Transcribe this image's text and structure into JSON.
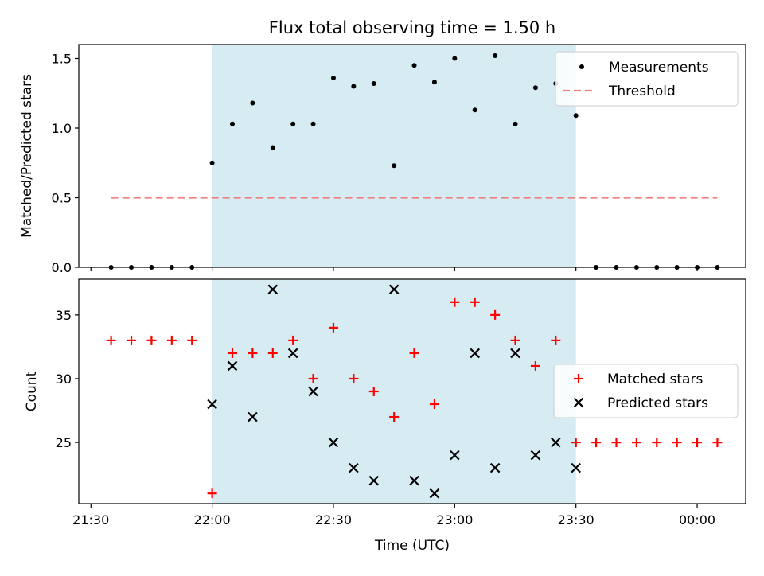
{
  "chart_data": [
    {
      "type": "scatter",
      "title": "Flux total observing time = 1.50 h",
      "xlabel": "",
      "ylabel": "Matched/Predicted stars",
      "xlim": [
        "21:27",
        "00:12"
      ],
      "ylim": [
        0,
        1.6
      ],
      "yticks": [
        0.0,
        0.5,
        1.0,
        1.5
      ],
      "ytick_labels": [
        "0.0",
        "0.5",
        "1.0",
        "1.5"
      ],
      "shaded_span": {
        "x0": "22:00",
        "x1": "23:30",
        "color": "#add8e6"
      },
      "legend_position": "top-right",
      "series": [
        {
          "name": "Measurements",
          "marker": "dot",
          "color": "#000000",
          "x": [
            "21:35",
            "21:40",
            "21:45",
            "21:50",
            "21:55",
            "22:00",
            "22:05",
            "22:10",
            "22:15",
            "22:20",
            "22:25",
            "22:30",
            "22:35",
            "22:40",
            "22:45",
            "22:50",
            "22:55",
            "23:00",
            "23:05",
            "23:10",
            "23:15",
            "23:20",
            "23:25",
            "23:30",
            "23:35",
            "23:40",
            "23:45",
            "23:50",
            "23:55",
            "00:00",
            "00:05"
          ],
          "y": [
            0,
            0,
            0,
            0,
            0,
            0.75,
            1.03,
            1.18,
            0.86,
            1.03,
            1.03,
            1.36,
            1.3,
            1.32,
            0.73,
            1.45,
            1.33,
            1.5,
            1.13,
            1.52,
            1.03,
            1.29,
            1.32,
            1.09,
            0,
            0,
            0,
            0,
            0,
            0,
            0
          ]
        },
        {
          "name": "Threshold",
          "marker": "dashed-line",
          "color": "#f08080",
          "x": [
            "21:35",
            "00:05"
          ],
          "y": [
            0.5,
            0.5
          ]
        }
      ]
    },
    {
      "type": "scatter",
      "title": "",
      "xlabel": "Time (UTC)",
      "ylabel": "Count",
      "xlim": [
        "21:27",
        "00:12"
      ],
      "ylim": [
        20.2,
        37.8
      ],
      "xticks": [
        "21:30",
        "22:00",
        "22:30",
        "23:00",
        "23:30",
        "00:00"
      ],
      "xtick_labels": [
        "21:30",
        "22:00",
        "22:30",
        "23:00",
        "23:30",
        "00:00"
      ],
      "yticks": [
        25,
        30,
        35
      ],
      "ytick_labels": [
        "25",
        "30",
        "35"
      ],
      "shaded_span": {
        "x0": "22:00",
        "x1": "23:30",
        "color": "#add8e6"
      },
      "legend_position": "center-right",
      "series": [
        {
          "name": "Matched stars",
          "marker": "plus",
          "color": "#ff0000",
          "x": [
            "21:35",
            "21:40",
            "21:45",
            "21:50",
            "21:55",
            "22:00",
            "22:05",
            "22:10",
            "22:15",
            "22:20",
            "22:25",
            "22:30",
            "22:35",
            "22:40",
            "22:45",
            "22:50",
            "22:55",
            "23:00",
            "23:05",
            "23:10",
            "23:15",
            "23:20",
            "23:25",
            "23:30",
            "23:35",
            "23:40",
            "23:45",
            "23:50",
            "23:55",
            "00:00",
            "00:05"
          ],
          "y": [
            33,
            33,
            33,
            33,
            33,
            21,
            32,
            32,
            32,
            33,
            30,
            34,
            30,
            29,
            27,
            32,
            28,
            36,
            36,
            35,
            33,
            31,
            33,
            25,
            25,
            25,
            25,
            25,
            25,
            25,
            25
          ]
        },
        {
          "name": "Predicted stars",
          "marker": "x",
          "color": "#000000",
          "x": [
            "22:00",
            "22:05",
            "22:10",
            "22:15",
            "22:20",
            "22:25",
            "22:30",
            "22:35",
            "22:40",
            "22:45",
            "22:50",
            "22:55",
            "23:00",
            "23:05",
            "23:10",
            "23:15",
            "23:20",
            "23:25",
            "23:30"
          ],
          "y": [
            28,
            31,
            27,
            37,
            32,
            29,
            25,
            23,
            22,
            37,
            22,
            21,
            24,
            32,
            23,
            32,
            24,
            25,
            23
          ]
        }
      ]
    }
  ]
}
